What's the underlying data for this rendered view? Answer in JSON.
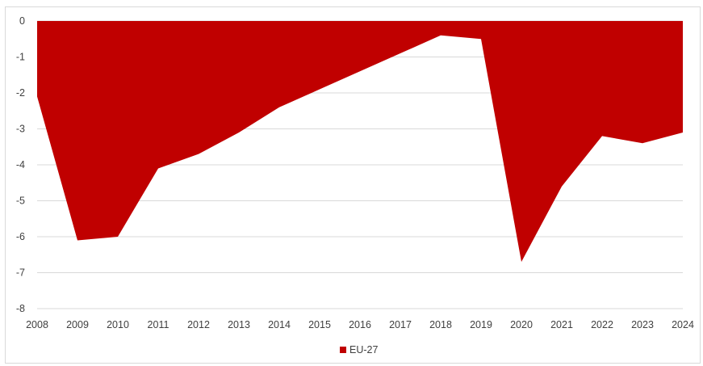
{
  "chart_data": {
    "type": "area",
    "x": [
      "2008",
      "2009",
      "2010",
      "2011",
      "2012",
      "2013",
      "2014",
      "2015",
      "2016",
      "2017",
      "2018",
      "2019",
      "2020",
      "2021",
      "2022",
      "2023",
      "2024"
    ],
    "series": [
      {
        "name": "EU-27",
        "color": "#c00000",
        "values": [
          -2.1,
          -6.1,
          -6.0,
          -4.1,
          -3.7,
          -3.1,
          -2.4,
          -1.9,
          -1.4,
          -0.9,
          -0.4,
          -0.5,
          -6.7,
          -4.6,
          -3.2,
          -3.4,
          -3.1
        ]
      }
    ],
    "y_ticks": [
      "0",
      "-1",
      "-2",
      "-3",
      "-4",
      "-5",
      "-6",
      "-7",
      "-8"
    ],
    "ylim": [
      -8,
      0
    ],
    "grid": true,
    "legend": "bottom-center",
    "title": "",
    "xlabel": "",
    "ylabel": ""
  }
}
